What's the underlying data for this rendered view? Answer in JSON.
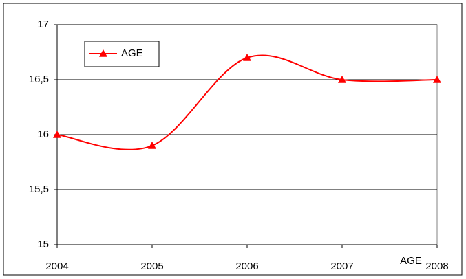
{
  "chart_data": {
    "type": "line",
    "x_label": "AGE",
    "x": [
      2004,
      2005,
      2006,
      2007,
      2008
    ],
    "xlim": [
      2004,
      2008
    ],
    "xticks": [
      2004,
      2005,
      2006,
      2007,
      2008
    ],
    "series": [
      {
        "name": "AGE",
        "color": "#ff0000",
        "values": [
          16,
          15.9,
          16.7,
          16.5,
          16.5
        ]
      }
    ],
    "ylim": [
      15,
      17
    ],
    "yticks": [
      15,
      {
        "value": 15.5,
        "label": "15,5"
      },
      16,
      {
        "value": 16.5,
        "label": "16,5"
      },
      17
    ],
    "grid": true,
    "smooth": true,
    "legend": "top-left"
  }
}
